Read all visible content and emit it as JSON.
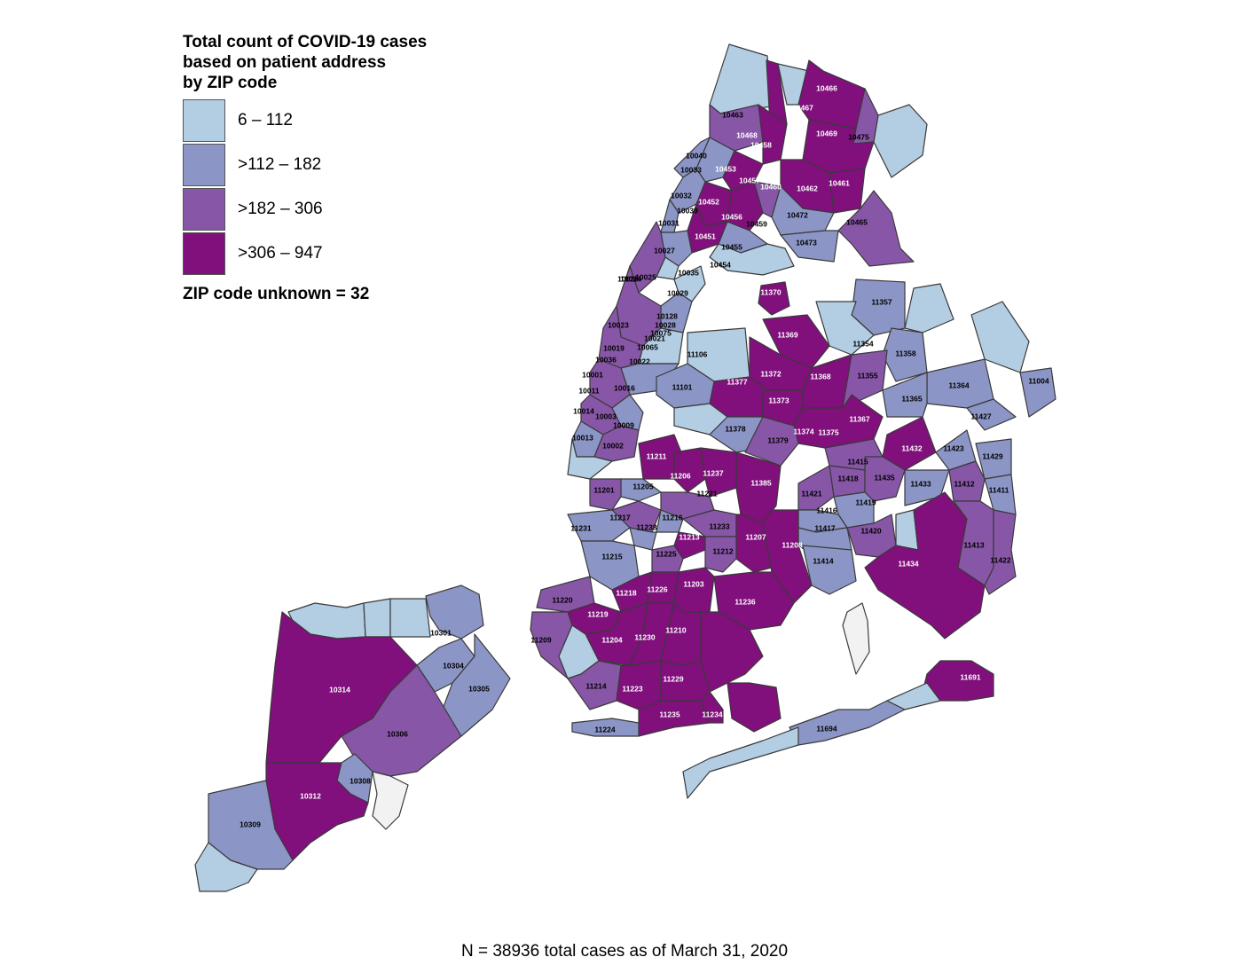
{
  "legend": {
    "title": "Total count of COVID-19 cases\nbased on patient address\nby ZIP code",
    "bins": [
      {
        "label": "6 – 112",
        "color": "#b3cde3"
      },
      {
        "label": ">112 – 182",
        "color": "#8c96c6"
      },
      {
        "label": ">182 – 306",
        "color": "#8856a7"
      },
      {
        "label": ">306 – 947",
        "color": "#810f7c"
      }
    ],
    "unknown_note": "ZIP code unknown = 32"
  },
  "caption": "N = 38936 total cases as of March 31, 2020",
  "unknown_fill": "#f2f2f2",
  "zip_labels": [
    {
      "zip": "10466",
      "bin": 3
    },
    {
      "zip": "10467",
      "bin": 3
    },
    {
      "zip": "10463",
      "bin": 2
    },
    {
      "zip": "10468",
      "bin": 3
    },
    {
      "zip": "10458",
      "bin": 3
    },
    {
      "zip": "10469",
      "bin": 3
    },
    {
      "zip": "10475",
      "bin": 2
    },
    {
      "zip": "10040",
      "bin": 2
    },
    {
      "zip": "10033",
      "bin": 2
    },
    {
      "zip": "10453",
      "bin": 3
    },
    {
      "zip": "10457",
      "bin": 3
    },
    {
      "zip": "10460",
      "bin": 3
    },
    {
      "zip": "10462",
      "bin": 3
    },
    {
      "zip": "10461",
      "bin": 3
    },
    {
      "zip": "10032",
      "bin": 2
    },
    {
      "zip": "10452",
      "bin": 3
    },
    {
      "zip": "10039",
      "bin": 2
    },
    {
      "zip": "10456",
      "bin": 3
    },
    {
      "zip": "10459",
      "bin": 2
    },
    {
      "zip": "10472",
      "bin": 2
    },
    {
      "zip": "10465",
      "bin": 2
    },
    {
      "zip": "10031",
      "bin": 2
    },
    {
      "zip": "10451",
      "bin": 3
    },
    {
      "zip": "10455",
      "bin": 2
    },
    {
      "zip": "10473",
      "bin": 2
    },
    {
      "zip": "10027",
      "bin": 2
    },
    {
      "zip": "10454",
      "bin": 1
    },
    {
      "zip": "10026",
      "bin": 1
    },
    {
      "zip": "10035",
      "bin": 1
    },
    {
      "zip": "10024",
      "bin": 2
    },
    {
      "zip": "10025",
      "bin": 2
    },
    {
      "zip": "10029",
      "bin": 2
    },
    {
      "zip": "11370",
      "bin": 3
    },
    {
      "zip": "11357",
      "bin": 1
    },
    {
      "zip": "10128",
      "bin": 1
    },
    {
      "zip": "10028",
      "bin": 1
    },
    {
      "zip": "10075",
      "bin": 1
    },
    {
      "zip": "10023",
      "bin": 2
    },
    {
      "zip": "10021",
      "bin": 1
    },
    {
      "zip": "11369",
      "bin": 3
    },
    {
      "zip": "10019",
      "bin": 2
    },
    {
      "zip": "10065",
      "bin": 1
    },
    {
      "zip": "11354",
      "bin": 1
    },
    {
      "zip": "11106",
      "bin": 1
    },
    {
      "zip": "11358",
      "bin": 1
    },
    {
      "zip": "10036",
      "bin": 2
    },
    {
      "zip": "10022",
      "bin": 1
    },
    {
      "zip": "10001",
      "bin": 2
    },
    {
      "zip": "11372",
      "bin": 3
    },
    {
      "zip": "11368",
      "bin": 3
    },
    {
      "zip": "11355",
      "bin": 2
    },
    {
      "zip": "11377",
      "bin": 3
    },
    {
      "zip": "10016",
      "bin": 2
    },
    {
      "zip": "11101",
      "bin": 1
    },
    {
      "zip": "10011",
      "bin": 2
    },
    {
      "zip": "11004",
      "bin": 1
    },
    {
      "zip": "11364",
      "bin": 1
    },
    {
      "zip": "11365",
      "bin": 1
    },
    {
      "zip": "11373",
      "bin": 3
    },
    {
      "zip": "10014",
      "bin": 2
    },
    {
      "zip": "10003",
      "bin": 2
    },
    {
      "zip": "11367",
      "bin": 3
    },
    {
      "zip": "11427",
      "bin": 1
    },
    {
      "zip": "10009",
      "bin": 2
    },
    {
      "zip": "11378",
      "bin": 1
    },
    {
      "zip": "11374",
      "bin": 3
    },
    {
      "zip": "11375",
      "bin": 3
    },
    {
      "zip": "10013",
      "bin": 1
    },
    {
      "zip": "11379",
      "bin": 2
    },
    {
      "zip": "11432",
      "bin": 3
    },
    {
      "zip": "11423",
      "bin": 1
    },
    {
      "zip": "10002",
      "bin": 2
    },
    {
      "zip": "11211",
      "bin": 3
    },
    {
      "zip": "11429",
      "bin": 1
    },
    {
      "zip": "11415",
      "bin": 2
    },
    {
      "zip": "11206",
      "bin": 3
    },
    {
      "zip": "11237",
      "bin": 3
    },
    {
      "zip": "11418",
      "bin": 2
    },
    {
      "zip": "11435",
      "bin": 2
    },
    {
      "zip": "11385",
      "bin": 3
    },
    {
      "zip": "11433",
      "bin": 1
    },
    {
      "zip": "11412",
      "bin": 2
    },
    {
      "zip": "11205",
      "bin": 1
    },
    {
      "zip": "11201",
      "bin": 2
    },
    {
      "zip": "11221",
      "bin": 2
    },
    {
      "zip": "11411",
      "bin": 1
    },
    {
      "zip": "11421",
      "bin": 2
    },
    {
      "zip": "11419",
      "bin": 1
    },
    {
      "zip": "11416",
      "bin": 2
    },
    {
      "zip": "11217",
      "bin": 2
    },
    {
      "zip": "11216",
      "bin": 1
    },
    {
      "zip": "11233",
      "bin": 2
    },
    {
      "zip": "11238",
      "bin": 1
    },
    {
      "zip": "11231",
      "bin": 1
    },
    {
      "zip": "11417",
      "bin": 1
    },
    {
      "zip": "11420",
      "bin": 2
    },
    {
      "zip": "11213",
      "bin": 3
    },
    {
      "zip": "11207",
      "bin": 3
    },
    {
      "zip": "11212",
      "bin": 2
    },
    {
      "zip": "11208",
      "bin": 3
    },
    {
      "zip": "11413",
      "bin": 2
    },
    {
      "zip": "11225",
      "bin": 2
    },
    {
      "zip": "11215",
      "bin": 1
    },
    {
      "zip": "11414",
      "bin": 1
    },
    {
      "zip": "11434",
      "bin": 3
    },
    {
      "zip": "11422",
      "bin": 2
    },
    {
      "zip": "11218",
      "bin": 3
    },
    {
      "zip": "11226",
      "bin": 3
    },
    {
      "zip": "11203",
      "bin": 3
    },
    {
      "zip": "11220",
      "bin": 2
    },
    {
      "zip": "11236",
      "bin": 3
    },
    {
      "zip": "11219",
      "bin": 3
    },
    {
      "zip": "10301",
      "bin": 1
    },
    {
      "zip": "11204",
      "bin": 3
    },
    {
      "zip": "11230",
      "bin": 3
    },
    {
      "zip": "11210",
      "bin": 3
    },
    {
      "zip": "11209",
      "bin": 2
    },
    {
      "zip": "10304",
      "bin": 1
    },
    {
      "zip": "10314",
      "bin": 3
    },
    {
      "zip": "10305",
      "bin": 1
    },
    {
      "zip": "11214",
      "bin": 2
    },
    {
      "zip": "11223",
      "bin": 3
    },
    {
      "zip": "11229",
      "bin": 3
    },
    {
      "zip": "11691",
      "bin": 3
    },
    {
      "zip": "11235",
      "bin": 3
    },
    {
      "zip": "11234",
      "bin": 3
    },
    {
      "zip": "10306",
      "bin": 2
    },
    {
      "zip": "11224",
      "bin": 1
    },
    {
      "zip": "11694",
      "bin": 1
    },
    {
      "zip": "10308",
      "bin": 1
    },
    {
      "zip": "10312",
      "bin": 3
    },
    {
      "zip": "10309",
      "bin": 1
    }
  ]
}
